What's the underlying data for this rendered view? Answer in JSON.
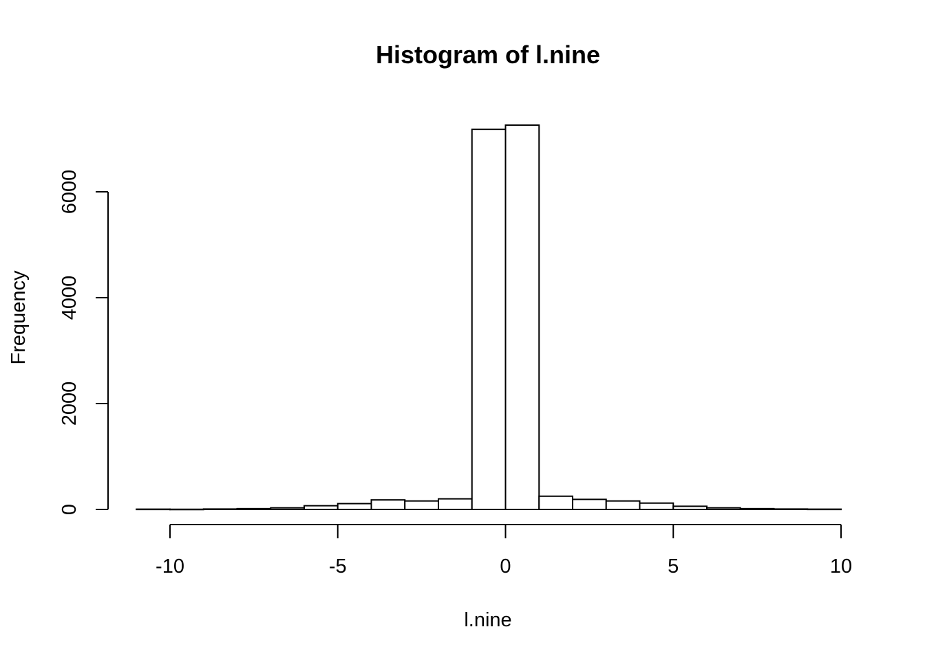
{
  "chart_data": {
    "type": "bar",
    "title": "Histogram of l.nine",
    "xlabel": "l.nine",
    "ylabel": "Frequency",
    "bin_edges": [
      -11,
      -10,
      -9,
      -8,
      -7,
      -6,
      -5,
      -4,
      -3,
      -2,
      -1,
      0,
      1,
      2,
      3,
      4,
      5,
      6,
      7,
      8,
      9,
      10
    ],
    "values": [
      5,
      3,
      8,
      15,
      30,
      70,
      110,
      180,
      160,
      200,
      7180,
      7260,
      250,
      190,
      160,
      120,
      60,
      30,
      15,
      8,
      5
    ],
    "x_ticks": [
      -10,
      -5,
      0,
      5,
      10
    ],
    "x_tick_labels": [
      "-10",
      "-5",
      "0",
      "5",
      "10"
    ],
    "y_ticks": [
      0,
      2000,
      4000,
      6000
    ],
    "y_tick_labels": [
      "0",
      "2000",
      "4000",
      "6000"
    ],
    "xlim": [
      -11,
      10
    ],
    "ylim": [
      0,
      6000
    ],
    "grid": false,
    "bar_fill": "#ffffff",
    "bar_stroke": "#000000"
  }
}
